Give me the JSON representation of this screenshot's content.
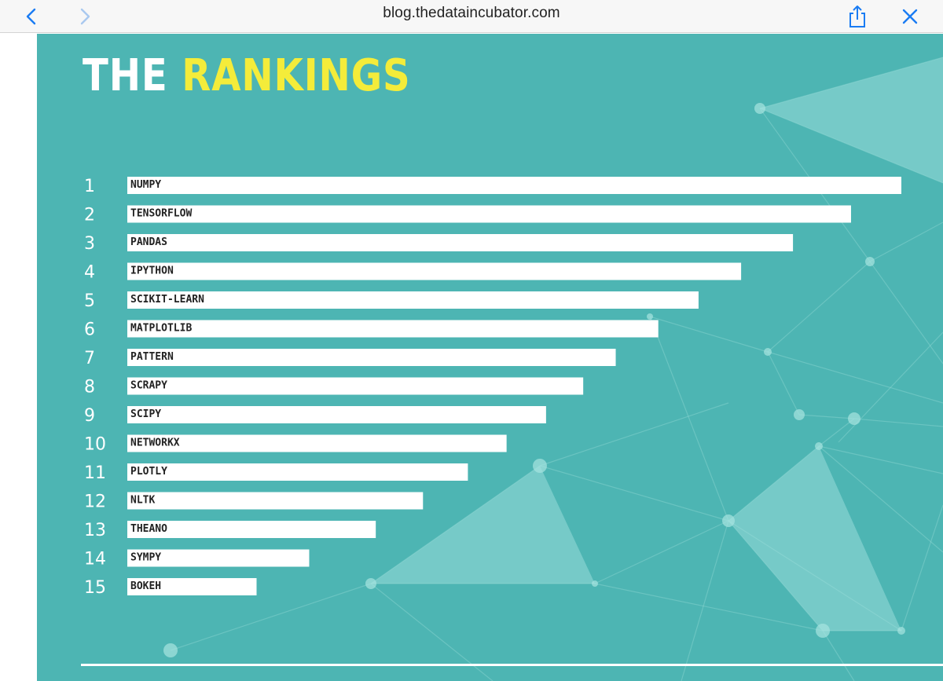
{
  "browser": {
    "url": "blog.thedataincubator.com",
    "icons": {
      "back": "chevron-left-icon",
      "forward": "chevron-right-icon",
      "share": "share-icon",
      "close": "close-icon"
    },
    "accent_color": "#1a7cf3"
  },
  "infographic": {
    "title_part1": "THE",
    "title_part2": "RANKINGS",
    "background_color": "#4db5b3",
    "highlight_color": "#f4ec3a"
  },
  "chart_data": {
    "type": "bar",
    "orientation": "horizontal",
    "title": "THE RANKINGS",
    "ranks": [
      "1",
      "2",
      "3",
      "4",
      "5",
      "6",
      "7",
      "8",
      "9",
      "10",
      "11",
      "12",
      "13",
      "14",
      "15"
    ],
    "categories": [
      "NUMPY",
      "TENSORFLOW",
      "PANDAS",
      "IPYTHON",
      "SCIKIT-LEARN",
      "MATPLOTLIB",
      "PATTERN",
      "SCRAPY",
      "SCIPY",
      "NETWORKX",
      "PLOTLY",
      "NLTK",
      "THEANO",
      "SYMPY",
      "BOKEH"
    ],
    "values": [
      100,
      93.5,
      86,
      79.3,
      73.8,
      68.6,
      63.1,
      58.9,
      54.1,
      49,
      44,
      38.2,
      32.1,
      23.5,
      16.7
    ],
    "xlim": [
      0,
      100
    ],
    "xlabel": "",
    "ylabel": "",
    "bar_color": "#ffffff"
  }
}
